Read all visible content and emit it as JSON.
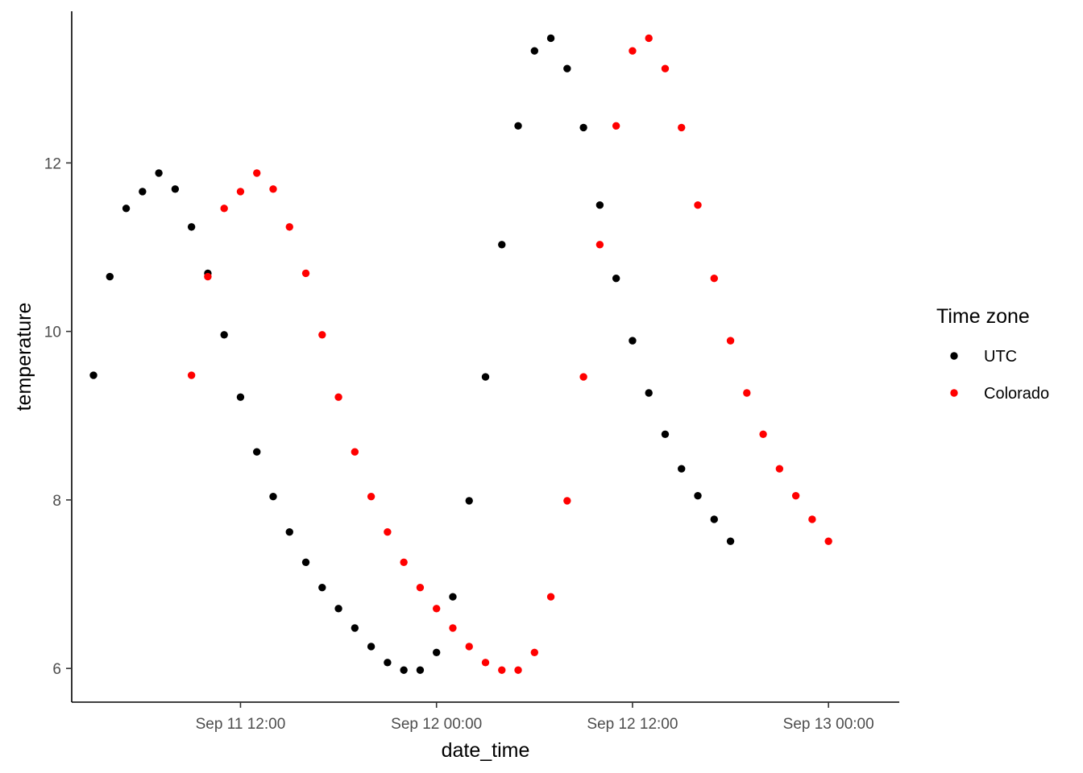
{
  "chart_data": {
    "type": "scatter",
    "title": "",
    "xlabel": "date_time",
    "ylabel": "temperature",
    "x_unit": "hour",
    "x_ticks": [
      {
        "label": "Sep 11 12:00",
        "value": "2021-09-11T12:00"
      },
      {
        "label": "Sep 12 00:00",
        "value": "2021-09-12T00:00"
      },
      {
        "label": "Sep 12 12:00",
        "value": "2021-09-12T12:00"
      },
      {
        "label": "Sep 13 00:00",
        "value": "2021-09-13T00:00"
      }
    ],
    "y_ticks": [
      6,
      8,
      10,
      12
    ],
    "xlim": [
      "2021-09-11T01:40",
      "2021-09-13T04:20"
    ],
    "ylim": [
      5.6,
      13.8
    ],
    "grid": false,
    "legend": {
      "title": "Time zone",
      "position": "right",
      "entries": [
        {
          "label": "UTC",
          "color": "#000000"
        },
        {
          "label": "Colorado",
          "color": "#ff0000"
        }
      ]
    },
    "series": [
      {
        "name": "UTC",
        "color": "#000000",
        "points": [
          {
            "x": "2021-09-11T03:00",
            "y": 9.48
          },
          {
            "x": "2021-09-11T04:00",
            "y": 10.65
          },
          {
            "x": "2021-09-11T05:00",
            "y": 11.46
          },
          {
            "x": "2021-09-11T06:00",
            "y": 11.66
          },
          {
            "x": "2021-09-11T07:00",
            "y": 11.88
          },
          {
            "x": "2021-09-11T08:00",
            "y": 11.69
          },
          {
            "x": "2021-09-11T09:00",
            "y": 11.24
          },
          {
            "x": "2021-09-11T10:00",
            "y": 10.69
          },
          {
            "x": "2021-09-11T11:00",
            "y": 9.96
          },
          {
            "x": "2021-09-11T12:00",
            "y": 9.22
          },
          {
            "x": "2021-09-11T13:00",
            "y": 8.57
          },
          {
            "x": "2021-09-11T14:00",
            "y": 8.04
          },
          {
            "x": "2021-09-11T15:00",
            "y": 7.62
          },
          {
            "x": "2021-09-11T16:00",
            "y": 7.26
          },
          {
            "x": "2021-09-11T17:00",
            "y": 6.96
          },
          {
            "x": "2021-09-11T18:00",
            "y": 6.71
          },
          {
            "x": "2021-09-11T19:00",
            "y": 6.48
          },
          {
            "x": "2021-09-11T20:00",
            "y": 6.26
          },
          {
            "x": "2021-09-11T21:00",
            "y": 6.07
          },
          {
            "x": "2021-09-11T22:00",
            "y": 5.98
          },
          {
            "x": "2021-09-11T23:00",
            "y": 5.98
          },
          {
            "x": "2021-09-12T00:00",
            "y": 6.19
          },
          {
            "x": "2021-09-12T01:00",
            "y": 6.85
          },
          {
            "x": "2021-09-12T02:00",
            "y": 7.99
          },
          {
            "x": "2021-09-12T03:00",
            "y": 9.46
          },
          {
            "x": "2021-09-12T04:00",
            "y": 11.03
          },
          {
            "x": "2021-09-12T05:00",
            "y": 12.44
          },
          {
            "x": "2021-09-12T06:00",
            "y": 13.33
          },
          {
            "x": "2021-09-12T07:00",
            "y": 13.48
          },
          {
            "x": "2021-09-12T08:00",
            "y": 13.12
          },
          {
            "x": "2021-09-12T09:00",
            "y": 12.42
          },
          {
            "x": "2021-09-12T10:00",
            "y": 11.5
          },
          {
            "x": "2021-09-12T11:00",
            "y": 10.63
          },
          {
            "x": "2021-09-12T12:00",
            "y": 9.89
          },
          {
            "x": "2021-09-12T13:00",
            "y": 9.27
          },
          {
            "x": "2021-09-12T14:00",
            "y": 8.78
          },
          {
            "x": "2021-09-12T15:00",
            "y": 8.37
          },
          {
            "x": "2021-09-12T16:00",
            "y": 8.05
          },
          {
            "x": "2021-09-12T17:00",
            "y": 7.77
          },
          {
            "x": "2021-09-12T18:00",
            "y": 7.51
          }
        ]
      },
      {
        "name": "Colorado",
        "color": "#ff0000",
        "points": [
          {
            "x": "2021-09-11T09:00",
            "y": 9.48
          },
          {
            "x": "2021-09-11T10:00",
            "y": 10.65
          },
          {
            "x": "2021-09-11T11:00",
            "y": 11.46
          },
          {
            "x": "2021-09-11T12:00",
            "y": 11.66
          },
          {
            "x": "2021-09-11T13:00",
            "y": 11.88
          },
          {
            "x": "2021-09-11T14:00",
            "y": 11.69
          },
          {
            "x": "2021-09-11T15:00",
            "y": 11.24
          },
          {
            "x": "2021-09-11T16:00",
            "y": 10.69
          },
          {
            "x": "2021-09-11T17:00",
            "y": 9.96
          },
          {
            "x": "2021-09-11T18:00",
            "y": 9.22
          },
          {
            "x": "2021-09-11T19:00",
            "y": 8.57
          },
          {
            "x": "2021-09-11T20:00",
            "y": 8.04
          },
          {
            "x": "2021-09-11T21:00",
            "y": 7.62
          },
          {
            "x": "2021-09-11T22:00",
            "y": 7.26
          },
          {
            "x": "2021-09-11T23:00",
            "y": 6.96
          },
          {
            "x": "2021-09-12T00:00",
            "y": 6.71
          },
          {
            "x": "2021-09-12T01:00",
            "y": 6.48
          },
          {
            "x": "2021-09-12T02:00",
            "y": 6.26
          },
          {
            "x": "2021-09-12T03:00",
            "y": 6.07
          },
          {
            "x": "2021-09-12T04:00",
            "y": 5.98
          },
          {
            "x": "2021-09-12T05:00",
            "y": 5.98
          },
          {
            "x": "2021-09-12T06:00",
            "y": 6.19
          },
          {
            "x": "2021-09-12T07:00",
            "y": 6.85
          },
          {
            "x": "2021-09-12T08:00",
            "y": 7.99
          },
          {
            "x": "2021-09-12T09:00",
            "y": 9.46
          },
          {
            "x": "2021-09-12T10:00",
            "y": 11.03
          },
          {
            "x": "2021-09-12T11:00",
            "y": 12.44
          },
          {
            "x": "2021-09-12T12:00",
            "y": 13.33
          },
          {
            "x": "2021-09-12T13:00",
            "y": 13.48
          },
          {
            "x": "2021-09-12T14:00",
            "y": 13.12
          },
          {
            "x": "2021-09-12T15:00",
            "y": 12.42
          },
          {
            "x": "2021-09-12T16:00",
            "y": 11.5
          },
          {
            "x": "2021-09-12T17:00",
            "y": 10.63
          },
          {
            "x": "2021-09-12T18:00",
            "y": 9.89
          },
          {
            "x": "2021-09-12T19:00",
            "y": 9.27
          },
          {
            "x": "2021-09-12T20:00",
            "y": 8.78
          },
          {
            "x": "2021-09-12T21:00",
            "y": 8.37
          },
          {
            "x": "2021-09-12T22:00",
            "y": 8.05
          },
          {
            "x": "2021-09-12T23:00",
            "y": 7.77
          },
          {
            "x": "2021-09-13T00:00",
            "y": 7.51
          }
        ]
      }
    ]
  }
}
